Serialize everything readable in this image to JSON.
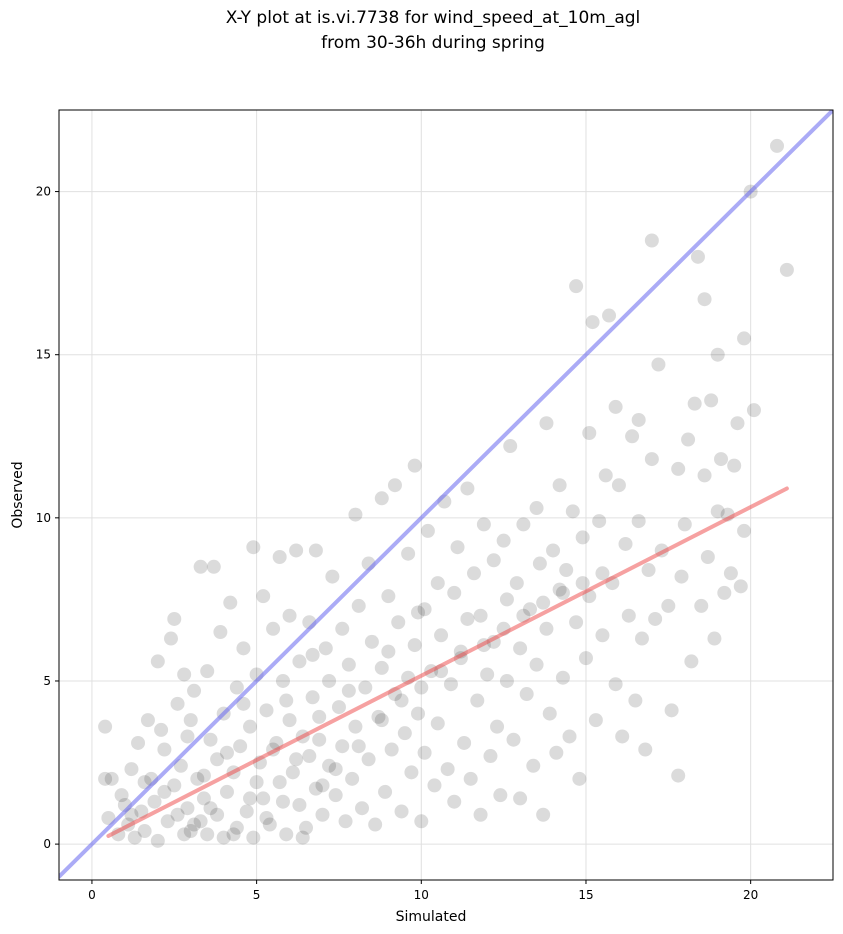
{
  "chart_data": {
    "type": "scatter",
    "title_lines": [
      "X-Y plot at is.vi.7738 for wind_speed_at_10m_agl",
      "from 30-36h during spring"
    ],
    "xlabel": "Simulated",
    "ylabel": "Observed",
    "xlim": [
      -1,
      22.5
    ],
    "ylim": [
      -1.1,
      22.5
    ],
    "xticks": [
      0,
      5,
      10,
      15,
      20
    ],
    "yticks": [
      0,
      5,
      10,
      15,
      20
    ],
    "grid": true,
    "colors": {
      "points": "#000000",
      "identity_line": "#6666ee",
      "fit_line": "#ee4444",
      "grid": "#e0e0e0"
    },
    "lines": [
      {
        "kind": "identity",
        "x": [
          -1,
          22.5
        ],
        "y": [
          -1,
          22.5
        ]
      },
      {
        "kind": "fit",
        "x": [
          0.5,
          21.1
        ],
        "y": [
          0.25,
          10.9
        ]
      }
    ],
    "points": [
      [
        0.4,
        3.6
      ],
      [
        0.4,
        2.0
      ],
      [
        0.5,
        0.8
      ],
      [
        0.6,
        2.0
      ],
      [
        0.8,
        0.3
      ],
      [
        0.9,
        1.5
      ],
      [
        1.0,
        1.2
      ],
      [
        1.1,
        0.6
      ],
      [
        1.2,
        2.3
      ],
      [
        1.3,
        0.2
      ],
      [
        1.4,
        3.1
      ],
      [
        1.5,
        1.0
      ],
      [
        1.6,
        0.4
      ],
      [
        1.7,
        3.8
      ],
      [
        1.8,
        2.0
      ],
      [
        1.9,
        1.3
      ],
      [
        2.0,
        5.6
      ],
      [
        2.0,
        0.1
      ],
      [
        2.1,
        3.5
      ],
      [
        2.2,
        2.9
      ],
      [
        2.3,
        0.7
      ],
      [
        2.4,
        6.3
      ],
      [
        2.5,
        1.8
      ],
      [
        2.5,
        6.9
      ],
      [
        2.6,
        4.3
      ],
      [
        2.7,
        2.4
      ],
      [
        2.8,
        0.3
      ],
      [
        2.8,
        5.2
      ],
      [
        2.9,
        1.1
      ],
      [
        3.0,
        3.8
      ],
      [
        3.1,
        4.7
      ],
      [
        3.1,
        0.6
      ],
      [
        3.2,
        2.0
      ],
      [
        3.3,
        8.5
      ],
      [
        3.4,
        1.4
      ],
      [
        3.5,
        5.3
      ],
      [
        3.5,
        0.3
      ],
      [
        3.6,
        3.2
      ],
      [
        3.7,
        8.5
      ],
      [
        3.8,
        2.6
      ],
      [
        3.8,
        0.9
      ],
      [
        3.9,
        6.5
      ],
      [
        4.0,
        4.0
      ],
      [
        4.0,
        0.2
      ],
      [
        4.1,
        1.6
      ],
      [
        4.2,
        7.4
      ],
      [
        4.3,
        2.2
      ],
      [
        4.4,
        4.8
      ],
      [
        4.4,
        0.5
      ],
      [
        4.5,
        3.0
      ],
      [
        4.6,
        6.0
      ],
      [
        4.7,
        1.0
      ],
      [
        4.8,
        3.6
      ],
      [
        4.9,
        9.1
      ],
      [
        4.9,
        0.2
      ],
      [
        5.0,
        5.2
      ],
      [
        5.1,
        2.5
      ],
      [
        5.2,
        7.6
      ],
      [
        5.2,
        1.4
      ],
      [
        5.3,
        4.1
      ],
      [
        5.4,
        0.6
      ],
      [
        5.5,
        6.6
      ],
      [
        5.6,
        3.1
      ],
      [
        5.7,
        8.8
      ],
      [
        5.7,
        1.9
      ],
      [
        5.8,
        5.0
      ],
      [
        5.9,
        0.3
      ],
      [
        6.0,
        3.8
      ],
      [
        6.0,
        7.0
      ],
      [
        6.1,
        2.2
      ],
      [
        6.2,
        9.0
      ],
      [
        6.3,
        1.2
      ],
      [
        6.3,
        5.6
      ],
      [
        6.4,
        3.3
      ],
      [
        6.5,
        0.5
      ],
      [
        6.6,
        6.8
      ],
      [
        6.6,
        2.7
      ],
      [
        6.7,
        4.5
      ],
      [
        6.8,
        9.0
      ],
      [
        6.8,
        1.7
      ],
      [
        6.9,
        3.9
      ],
      [
        7.0,
        0.9
      ],
      [
        7.1,
        6.0
      ],
      [
        7.2,
        2.4
      ],
      [
        7.2,
        5.0
      ],
      [
        7.3,
        8.2
      ],
      [
        7.4,
        1.5
      ],
      [
        7.5,
        4.2
      ],
      [
        7.6,
        3.0
      ],
      [
        7.6,
        6.6
      ],
      [
        7.7,
        0.7
      ],
      [
        7.8,
        5.5
      ],
      [
        7.9,
        2.0
      ],
      [
        8.0,
        10.1
      ],
      [
        8.0,
        3.6
      ],
      [
        8.1,
        7.3
      ],
      [
        8.2,
        1.1
      ],
      [
        8.3,
        4.8
      ],
      [
        8.4,
        8.6
      ],
      [
        8.4,
        2.6
      ],
      [
        8.5,
        6.2
      ],
      [
        8.6,
        0.6
      ],
      [
        8.7,
        3.9
      ],
      [
        8.8,
        10.6
      ],
      [
        8.8,
        5.4
      ],
      [
        8.9,
        1.6
      ],
      [
        9.0,
        7.6
      ],
      [
        9.1,
        2.9
      ],
      [
        9.2,
        4.6
      ],
      [
        9.2,
        11.0
      ],
      [
        9.3,
        6.8
      ],
      [
        9.4,
        1.0
      ],
      [
        9.5,
        3.4
      ],
      [
        9.6,
        8.9
      ],
      [
        9.6,
        5.1
      ],
      [
        9.7,
        2.2
      ],
      [
        9.8,
        11.6
      ],
      [
        9.8,
        6.1
      ],
      [
        9.9,
        4.0
      ],
      [
        10.0,
        0.7
      ],
      [
        10.1,
        7.2
      ],
      [
        10.1,
        2.8
      ],
      [
        10.2,
        9.6
      ],
      [
        10.3,
        5.3
      ],
      [
        10.4,
        1.8
      ],
      [
        10.5,
        8.0
      ],
      [
        10.5,
        3.7
      ],
      [
        10.6,
        6.4
      ],
      [
        10.7,
        10.5
      ],
      [
        10.8,
        2.3
      ],
      [
        10.9,
        4.9
      ],
      [
        11.0,
        7.7
      ],
      [
        11.0,
        1.3
      ],
      [
        11.1,
        9.1
      ],
      [
        11.2,
        5.9
      ],
      [
        11.3,
        3.1
      ],
      [
        11.4,
        10.9
      ],
      [
        11.4,
        6.9
      ],
      [
        11.5,
        2.0
      ],
      [
        11.6,
        8.3
      ],
      [
        11.7,
        4.4
      ],
      [
        11.8,
        0.9
      ],
      [
        11.8,
        7.0
      ],
      [
        11.9,
        9.8
      ],
      [
        12.0,
        5.2
      ],
      [
        12.1,
        2.7
      ],
      [
        12.2,
        8.7
      ],
      [
        12.2,
        6.2
      ],
      [
        12.3,
        3.6
      ],
      [
        12.4,
        1.5
      ],
      [
        12.5,
        9.3
      ],
      [
        12.6,
        5.0
      ],
      [
        12.6,
        7.5
      ],
      [
        12.7,
        12.2
      ],
      [
        12.8,
        3.2
      ],
      [
        12.9,
        8.0
      ],
      [
        13.0,
        6.0
      ],
      [
        13.0,
        1.4
      ],
      [
        13.1,
        9.8
      ],
      [
        13.2,
        4.6
      ],
      [
        13.3,
        7.2
      ],
      [
        13.4,
        2.4
      ],
      [
        13.5,
        10.3
      ],
      [
        13.5,
        5.5
      ],
      [
        13.6,
        8.6
      ],
      [
        13.7,
        0.9
      ],
      [
        13.8,
        12.9
      ],
      [
        13.8,
        6.6
      ],
      [
        13.9,
        4.0
      ],
      [
        14.0,
        9.0
      ],
      [
        14.1,
        2.8
      ],
      [
        14.2,
        7.8
      ],
      [
        14.2,
        11.0
      ],
      [
        14.3,
        5.1
      ],
      [
        14.4,
        8.4
      ],
      [
        14.5,
        3.3
      ],
      [
        14.6,
        10.2
      ],
      [
        14.7,
        17.1
      ],
      [
        14.7,
        6.8
      ],
      [
        14.8,
        2.0
      ],
      [
        14.9,
        9.4
      ],
      [
        15.0,
        5.7
      ],
      [
        15.1,
        12.6
      ],
      [
        15.1,
        7.6
      ],
      [
        15.2,
        16.0
      ],
      [
        15.3,
        3.8
      ],
      [
        15.4,
        9.9
      ],
      [
        15.5,
        6.4
      ],
      [
        15.6,
        11.3
      ],
      [
        15.7,
        16.2
      ],
      [
        15.8,
        8.0
      ],
      [
        15.9,
        13.4
      ],
      [
        15.9,
        4.9
      ],
      [
        16.0,
        11.0
      ],
      [
        16.1,
        3.3
      ],
      [
        16.2,
        9.2
      ],
      [
        16.3,
        7.0
      ],
      [
        16.4,
        12.5
      ],
      [
        16.5,
        4.4
      ],
      [
        16.6,
        9.9
      ],
      [
        16.6,
        13.0
      ],
      [
        16.7,
        6.3
      ],
      [
        16.8,
        2.9
      ],
      [
        16.9,
        8.4
      ],
      [
        17.0,
        18.5
      ],
      [
        17.0,
        11.8
      ],
      [
        17.1,
        6.9
      ],
      [
        17.2,
        14.7
      ],
      [
        17.3,
        9.0
      ],
      [
        17.5,
        7.3
      ],
      [
        17.6,
        4.1
      ],
      [
        17.8,
        11.5
      ],
      [
        17.8,
        2.1
      ],
      [
        17.9,
        8.2
      ],
      [
        18.0,
        9.8
      ],
      [
        18.1,
        12.4
      ],
      [
        18.2,
        5.6
      ],
      [
        18.3,
        13.5
      ],
      [
        18.4,
        18.0
      ],
      [
        18.5,
        7.3
      ],
      [
        18.6,
        16.7
      ],
      [
        18.6,
        11.3
      ],
      [
        18.7,
        8.8
      ],
      [
        18.8,
        13.6
      ],
      [
        18.9,
        6.3
      ],
      [
        19.0,
        10.2
      ],
      [
        19.0,
        15.0
      ],
      [
        19.1,
        11.8
      ],
      [
        19.2,
        7.7
      ],
      [
        19.3,
        10.1
      ],
      [
        19.4,
        8.3
      ],
      [
        19.5,
        11.6
      ],
      [
        19.6,
        12.9
      ],
      [
        19.7,
        7.9
      ],
      [
        19.8,
        15.5
      ],
      [
        19.8,
        9.6
      ],
      [
        20.0,
        20.0
      ],
      [
        20.1,
        13.3
      ],
      [
        20.8,
        21.4
      ],
      [
        21.1,
        17.6
      ],
      [
        1.2,
        0.9
      ],
      [
        2.2,
        1.6
      ],
      [
        3.0,
        0.4
      ],
      [
        3.6,
        1.1
      ],
      [
        4.3,
        0.3
      ],
      [
        4.8,
        1.4
      ],
      [
        5.3,
        0.8
      ],
      [
        5.8,
        1.3
      ],
      [
        6.4,
        0.2
      ],
      [
        7.0,
        1.8
      ],
      [
        2.6,
        0.9
      ],
      [
        3.4,
        2.1
      ],
      [
        4.1,
        2.8
      ],
      [
        5.5,
        2.9
      ],
      [
        6.2,
        2.6
      ],
      [
        6.9,
        3.2
      ],
      [
        7.4,
        2.3
      ],
      [
        8.1,
        3.0
      ],
      [
        8.8,
        3.8
      ],
      [
        9.4,
        4.4
      ],
      [
        10.0,
        4.8
      ],
      [
        10.6,
        5.3
      ],
      [
        11.2,
        5.7
      ],
      [
        11.9,
        6.1
      ],
      [
        12.5,
        6.6
      ],
      [
        13.1,
        7.0
      ],
      [
        13.7,
        7.4
      ],
      [
        14.3,
        7.7
      ],
      [
        14.9,
        8.0
      ],
      [
        15.5,
        8.3
      ],
      [
        1.6,
        1.9
      ],
      [
        2.9,
        3.3
      ],
      [
        3.3,
        0.7
      ],
      [
        4.6,
        4.3
      ],
      [
        5.0,
        1.9
      ],
      [
        5.9,
        4.4
      ],
      [
        6.7,
        5.8
      ],
      [
        7.8,
        4.7
      ],
      [
        9.0,
        5.9
      ],
      [
        9.9,
        7.1
      ]
    ]
  }
}
